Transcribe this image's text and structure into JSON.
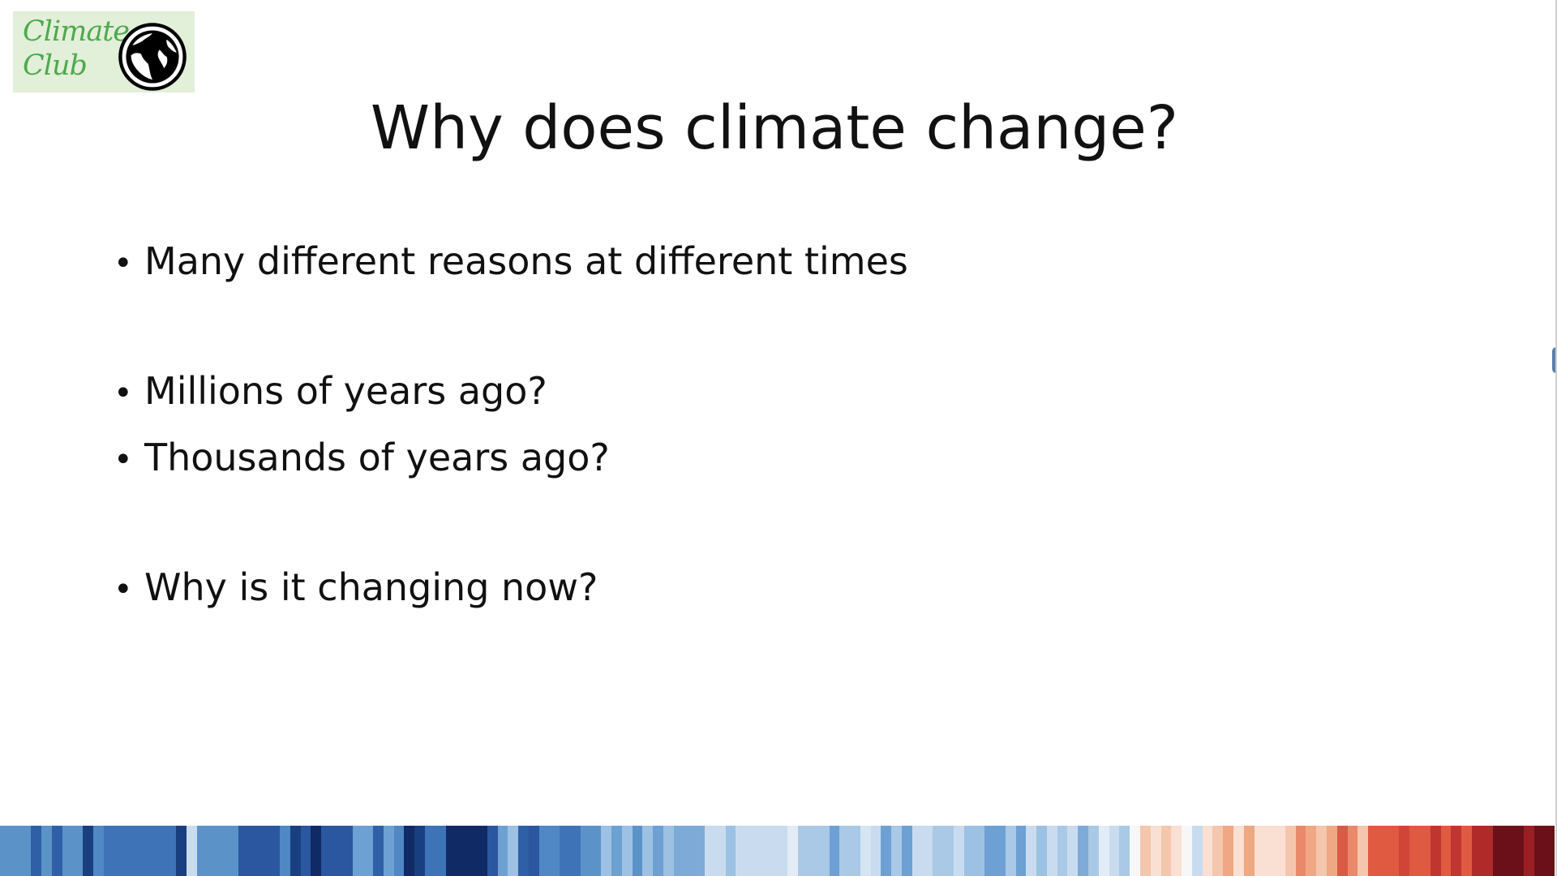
{
  "logo": {
    "line1": "Climate",
    "line2": "Club",
    "icon": "globe-icon",
    "background": "#e2efd9",
    "text_color": "#4fa94f"
  },
  "slide": {
    "title": "Why does climate change?",
    "bullets": [
      "Many different reasons at different times",
      "Millions of years ago?",
      "Thousands of years ago?",
      "Why is it changing now?"
    ],
    "bullet_glyph": "•"
  },
  "warming_stripes": [
    "#5b93c9",
    "#5b93c9",
    "#5b93c9",
    "#2f5fa6",
    "#5b93c9",
    "#2f5fa6",
    "#5b93c9",
    "#5b93c9",
    "#1a3f80",
    "#4f88c4",
    "#3e73b8",
    "#3e73b8",
    "#3e73b8",
    "#3e73b8",
    "#3e73b8",
    "#3e73b8",
    "#3e73b8",
    "#1a3f80",
    "#c9dcef",
    "#5b93c9",
    "#5b93c9",
    "#5b93c9",
    "#5b93c9",
    "#2a57a0",
    "#2a57a0",
    "#2a57a0",
    "#2a57a0",
    "#4f88c4",
    "#1a3f80",
    "#2a57a0",
    "#102a66",
    "#2a57a0",
    "#2a57a0",
    "#2a57a0",
    "#6ea1d3",
    "#6ea1d3",
    "#2f5fa6",
    "#6ea1d3",
    "#4f88c4",
    "#102a66",
    "#1a3f80",
    "#3e73b8",
    "#3e73b8",
    "#102a66",
    "#102a66",
    "#102a66",
    "#102a66",
    "#2a57a0",
    "#6ea1d3",
    "#9cc1e3",
    "#2f5fa6",
    "#2a57a0",
    "#4f88c4",
    "#4f88c4",
    "#3e73b8",
    "#3e73b8",
    "#5b93c9",
    "#5b93c9",
    "#9cc1e3",
    "#6ea1d3",
    "#9cc1e3",
    "#5b93c9",
    "#9cc1e3",
    "#6ea1d3",
    "#9cc1e3",
    "#7eaad7",
    "#7eaad7",
    "#7eaad7",
    "#c9dcef",
    "#c9dcef",
    "#9cc1e3",
    "#c9dcef",
    "#c9dcef",
    "#c9dcef",
    "#c9dcef",
    "#c9dcef",
    "#e3ecf6",
    "#a9c9e6",
    "#a9c9e6",
    "#a9c9e6",
    "#6ea1d3",
    "#a9c9e6",
    "#a9c9e6",
    "#d6e5f3",
    "#c9dcef",
    "#6ea1d3",
    "#a9c9e6",
    "#6ea1d3",
    "#c9dcef",
    "#c9dcef",
    "#a9c9e6",
    "#a9c9e6",
    "#c9dcef",
    "#9cc1e3",
    "#9cc1e3",
    "#6ea1d3",
    "#6ea1d3",
    "#a9c9e6",
    "#6ea1d3",
    "#c9dcef",
    "#9cc1e3",
    "#c9dcef",
    "#a9c9e6",
    "#c9dcef",
    "#7eaad7",
    "#a9c9e6",
    "#e3ecf6",
    "#c9dcef",
    "#a9c9e6",
    "#f7f7f7",
    "#f4c6ad",
    "#f9e0d2",
    "#f4c6ad",
    "#f9e0d2",
    "#f7f7f7",
    "#c9dcef",
    "#f9e0d2",
    "#f4c6ad",
    "#f0a783",
    "#f9e0d2",
    "#f0a783",
    "#f9e0d2",
    "#f9e0d2",
    "#f9e0d2",
    "#f4c6ad",
    "#e9896a",
    "#f0a783",
    "#f4c6ad",
    "#f0a783",
    "#d95a45",
    "#e9896a",
    "#f4c6ad",
    "#e05a42",
    "#e05a42",
    "#e05a42",
    "#d04535",
    "#e05a42",
    "#e05a42",
    "#c03530",
    "#e05a42",
    "#c03530",
    "#e05a42",
    "#b02a2a",
    "#b02a2a",
    "#6b1018",
    "#6b1018",
    "#6b1018",
    "#9a1e24",
    "#6b1018",
    "#6b1018"
  ]
}
